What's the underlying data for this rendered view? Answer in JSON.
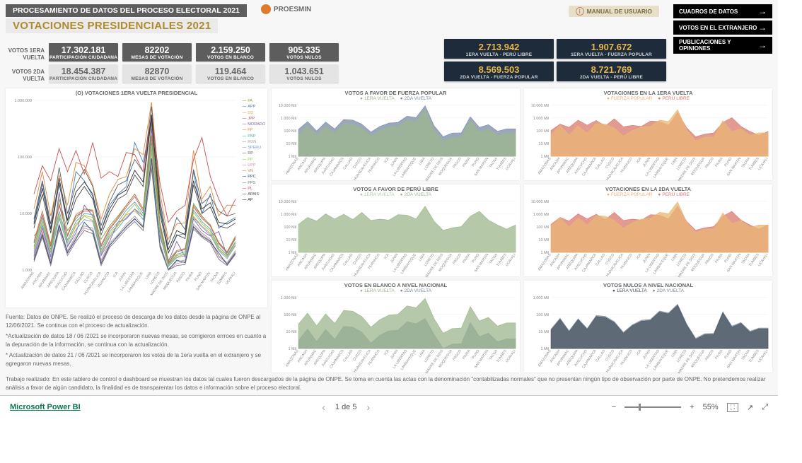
{
  "header": {
    "process": "PROCESAMIENTO DE DATOS DEL PROCESO ELECTORAL 2021",
    "title": "VOTACIONES PRESIDENCIALES 2021",
    "brand": "PROESMIN",
    "manual": "MANUAL DE USUARIO"
  },
  "nav": [
    "CUADROS DE DATOS",
    "VOTOS EN EL EXTRANJERO",
    "PUBLICACIONES Y OPINIONES"
  ],
  "rows": {
    "r1": {
      "label": "VOTOS 1ERA VUELTA",
      "cards": [
        {
          "val": "17.302.181",
          "lbl": "PARTICIPACIÓN CIUDADANA"
        },
        {
          "val": "82202",
          "lbl": "MESAS DE VOTACIÓN"
        },
        {
          "val": "2.159.250",
          "lbl": "VOTOS EN BLANCO"
        },
        {
          "val": "905.335",
          "lbl": "VOTOS NULOS"
        }
      ]
    },
    "r2": {
      "label": "VOTOS 2DA VUELTA",
      "cards": [
        {
          "val": "18.454.387",
          "lbl": "PARTICIPACIÓN CIUDADANA"
        },
        {
          "val": "82870",
          "lbl": "MESAS DE VOTACIÓN"
        },
        {
          "val": "119.464",
          "lbl": "VOTOS EN BLANCO"
        },
        {
          "val": "1.043.651",
          "lbl": "VOTOS NULOS"
        }
      ]
    }
  },
  "big": [
    {
      "val": "2.713.942",
      "lbl": "1ERA VUELTA - PERÚ LIBRE"
    },
    {
      "val": "1.907.672",
      "lbl": "1ERA VUELTA - FUERZA POPULAR"
    },
    {
      "val": "8.569.503",
      "lbl": "2DA VUELTA - FUERZA POPULAR"
    },
    {
      "val": "8.721.769",
      "lbl": "2DA VUELTA - PERÚ LIBRE"
    }
  ],
  "regions": [
    "AMAZONAS",
    "ANCASH",
    "APURIMAC",
    "AREQUIPA",
    "AYACUCHO",
    "CAJAMARCA",
    "CALLAO",
    "CUSCO",
    "HUANCAVELICA",
    "HUANUCO",
    "ICA",
    "JUNIN",
    "LA LIBERTAD",
    "LAMBAYEQUE",
    "LIMA",
    "LORETO",
    "MADRE DE DIOS",
    "MOQUEGUA",
    "PASCO",
    "PIURA",
    "PUNO",
    "SAN MARTIN",
    "TACNA",
    "TUMBES",
    "UCAYALI"
  ],
  "mainChart": {
    "title": "(O) VOTACIONES 1ERA VUELTA PRESIDENCIAL",
    "type": "line",
    "ylim": [
      1000,
      1000000
    ],
    "yscale": "log",
    "ylabels": [
      "1.000",
      "10.000",
      "100.000",
      "1.000.000"
    ],
    "series": [
      {
        "name": "FA",
        "color": "#7aa34a",
        "data": [
          4000,
          6000,
          3000,
          18000,
          5000,
          8000,
          12000,
          11000,
          3500,
          6000,
          9000,
          14000,
          22000,
          12000,
          380000,
          7000,
          1500,
          2200,
          2400,
          15000,
          9000,
          6200,
          3100,
          2100,
          4000
        ]
      },
      {
        "name": "APP",
        "color": "#4b7fb5",
        "data": [
          7000,
          34000,
          5500,
          32000,
          7500,
          55000,
          38000,
          20000,
          5000,
          14000,
          22000,
          30000,
          180000,
          80000,
          420000,
          15000,
          2000,
          4000,
          4500,
          55000,
          10000,
          22000,
          5500,
          7000,
          8500
        ]
      },
      {
        "name": "DD",
        "color": "#d9b347",
        "data": [
          2200,
          7000,
          2000,
          9000,
          3000,
          6000,
          9000,
          7500,
          2000,
          4000,
          6000,
          9500,
          11000,
          8000,
          120000,
          4500,
          1200,
          1700,
          1900,
          9000,
          6000,
          4500,
          2300,
          1700,
          2800
        ]
      },
      {
        "name": "JPP",
        "color": "#c4545f",
        "data": [
          3000,
          9500,
          2600,
          14000,
          4000,
          9000,
          11000,
          11000,
          2600,
          5200,
          8000,
          13000,
          20000,
          11000,
          220000,
          6200,
          1300,
          2100,
          2300,
          13000,
          8200,
          6000,
          2900,
          2000,
          3600
        ]
      },
      {
        "name": "MORADO",
        "color": "#8b5fa8",
        "data": [
          1800,
          5500,
          1700,
          24000,
          2600,
          4500,
          14000,
          9000,
          1800,
          3200,
          7000,
          8000,
          12000,
          9000,
          320000,
          3800,
          1400,
          3200,
          1700,
          8000,
          5000,
          4000,
          4800,
          1800,
          3000
        ]
      },
      {
        "name": "FP",
        "color": "#e18a3b",
        "data": [
          12000,
          55000,
          9000,
          48000,
          14000,
          80000,
          70000,
          32000,
          8000,
          22000,
          40000,
          45000,
          140000,
          110000,
          930000,
          24000,
          3500,
          6500,
          6800,
          130000,
          18000,
          30000,
          9000,
          14000,
          14000
        ]
      },
      {
        "name": "PNP",
        "color": "#5aa7a7",
        "data": [
          2600,
          8500,
          2300,
          11000,
          3400,
          7200,
          10000,
          9500,
          2300,
          4700,
          7000,
          11500,
          16000,
          10000,
          180000,
          5500,
          1250,
          1900,
          2100,
          11500,
          7200,
          5300,
          2600,
          1850,
          3200
        ]
      },
      {
        "name": "RUN",
        "color": "#a0a0a0",
        "data": [
          1700,
          4800,
          1500,
          6500,
          2200,
          4000,
          6000,
          5500,
          1500,
          3000,
          4200,
          6500,
          9000,
          6000,
          80000,
          3000,
          1050,
          1400,
          1500,
          6500,
          4500,
          3500,
          1800,
          1350,
          2200
        ]
      },
      {
        "name": "SPERU",
        "color": "#6e9ed6",
        "data": [
          2000,
          6200,
          1800,
          8200,
          2700,
          5200,
          7800,
          7200,
          1900,
          3800,
          5500,
          8500,
          12000,
          7800,
          140000,
          4200,
          1150,
          1650,
          1800,
          8500,
          5800,
          4200,
          2200,
          1600,
          2700
        ]
      },
      {
        "name": "RP",
        "color": "#5c5c5c",
        "data": [
          8000,
          38000,
          6500,
          65000,
          10000,
          32000,
          60000,
          30000,
          6200,
          16000,
          32000,
          38000,
          90000,
          55000,
          780000,
          17000,
          2800,
          8500,
          5200,
          60000,
          15000,
          20000,
          11000,
          9000,
          10000
        ]
      },
      {
        "name": "PP",
        "color": "#9bc55d",
        "data": [
          2400,
          7500,
          2100,
          9500,
          3100,
          6400,
          9200,
          8500,
          2100,
          4300,
          6300,
          10000,
          14500,
          9000,
          160000,
          5000,
          1200,
          1800,
          1950,
          10500,
          6600,
          4900,
          2400,
          1750,
          3000
        ]
      },
      {
        "name": "UPP",
        "color": "#d88fb0",
        "data": [
          1600,
          4500,
          1400,
          5800,
          2100,
          3700,
          5500,
          5000,
          1400,
          2800,
          3900,
          6000,
          8200,
          5500,
          70000,
          2800,
          1000,
          1300,
          1400,
          6000,
          4200,
          3300,
          1700,
          1300,
          2100
        ]
      },
      {
        "name": "VN",
        "color": "#b5874a",
        "data": [
          3200,
          11000,
          2800,
          15000,
          4200,
          9500,
          12000,
          11500,
          2800,
          5500,
          8500,
          14000,
          22000,
          12000,
          240000,
          6700,
          1350,
          2200,
          2400,
          14000,
          8800,
          6300,
          3000,
          2100,
          3800
        ]
      },
      {
        "name": "PPC",
        "color": "#264d73",
        "data": [
          1500,
          4200,
          1300,
          6200,
          2000,
          3500,
          7000,
          4800,
          1300,
          2700,
          4000,
          5800,
          8000,
          5800,
          95000,
          2700,
          950,
          1500,
          1350,
          5800,
          4000,
          3200,
          2000,
          1250,
          2000
        ]
      },
      {
        "name": "PPS",
        "color": "#7a7a7a",
        "data": [
          1400,
          3800,
          1200,
          5200,
          1800,
          3200,
          5000,
          4400,
          1200,
          2500,
          3600,
          5300,
          7200,
          5000,
          62000,
          2500,
          900,
          1200,
          1250,
          5300,
          3800,
          3000,
          1550,
          1200,
          1900
        ]
      },
      {
        "name": "PL",
        "color": "#c94f4f",
        "data": [
          22000,
          70000,
          38000,
          140000,
          55000,
          130000,
          50000,
          180000,
          42000,
          55000,
          45000,
          120000,
          110000,
          55000,
          560000,
          35000,
          7000,
          11000,
          14000,
          90000,
          220000,
          45000,
          18000,
          9000,
          18000
        ]
      },
      {
        "name": "APAIS",
        "color": "#4a4a4a",
        "data": [
          5500,
          22000,
          4500,
          35000,
          6500,
          18000,
          30000,
          18000,
          4200,
          10000,
          18000,
          22000,
          48000,
          30000,
          480000,
          10000,
          2000,
          4200,
          3600,
          32000,
          10000,
          13000,
          6000,
          5500,
          6800
        ]
      },
      {
        "name": "AP",
        "color": "#333333",
        "data": [
          6500,
          28000,
          5200,
          42000,
          7500,
          24000,
          36000,
          22000,
          5000,
          12000,
          21000,
          26000,
          58000,
          36000,
          560000,
          12000,
          2300,
          5000,
          4200,
          38000,
          12000,
          15500,
          7000,
          6500,
          8000
        ]
      }
    ]
  },
  "smallCharts": [
    {
      "title": "VOTOS A FAVOR DE FUERZA POPULAR",
      "legend": [
        "1ERA VUELTA",
        "2DA VUELTA"
      ],
      "colors": [
        "#9cb68c",
        "#7a8aa8"
      ],
      "ylabels": [
        "1 Mil",
        "10 Mil",
        "100 Mil",
        "1.000 Mil",
        "10.000 Mil"
      ],
      "s1": [
        50,
        260,
        45,
        240,
        65,
        380,
        340,
        160,
        38,
        105,
        195,
        220,
        680,
        530,
        4500,
        115,
        16,
        32,
        33,
        620,
        85,
        145,
        44,
        68,
        68
      ],
      "s2": [
        130,
        520,
        95,
        480,
        140,
        760,
        680,
        330,
        78,
        220,
        400,
        450,
        1400,
        1080,
        9100,
        240,
        34,
        66,
        68,
        1260,
        180,
        300,
        92,
        140,
        140
      ]
    },
    {
      "title": "VOTACIONES EN LA 1ERA VUELTA",
      "legend": [
        "FUERZA POPULAR",
        "PERÚ LIBRE"
      ],
      "colors": [
        "#eab676",
        "#d97a6c"
      ],
      "ylabels": [
        "1 Mil",
        "10 Mil",
        "100 Mil",
        "1.000 Mil",
        "10.000 Mil"
      ],
      "s1": [
        50,
        260,
        45,
        240,
        65,
        380,
        340,
        160,
        38,
        105,
        195,
        220,
        680,
        530,
        4500,
        115,
        16,
        32,
        33,
        620,
        85,
        145,
        44,
        68,
        68
      ],
      "s2": [
        105,
        330,
        185,
        680,
        270,
        630,
        240,
        870,
        205,
        265,
        220,
        580,
        530,
        265,
        2700,
        170,
        34,
        54,
        68,
        440,
        1070,
        220,
        88,
        44,
        88
      ]
    },
    {
      "title": "VOTOS A FAVOR DE PERÚ LIBRE",
      "legend": [
        "1ERA VUELTA",
        "2DA VUELTA"
      ],
      "colors": [
        "#b5c9a8",
        "#9cb68c"
      ],
      "ylabels": [
        "1 Mil",
        "10 Mil",
        "100 Mil",
        "1.000 Mil",
        "10.000 Mil"
      ],
      "s1": [
        105,
        330,
        185,
        680,
        270,
        630,
        240,
        870,
        205,
        265,
        220,
        580,
        530,
        265,
        2700,
        170,
        34,
        54,
        68,
        440,
        1070,
        220,
        88,
        44,
        88
      ],
      "s2": [
        160,
        550,
        290,
        1050,
        420,
        980,
        380,
        1350,
        320,
        410,
        340,
        900,
        830,
        420,
        4200,
        270,
        54,
        84,
        105,
        690,
        1650,
        340,
        140,
        68,
        140
      ]
    },
    {
      "title": "VOTACIONES EN LA 2DA VUELTA",
      "legend": [
        "FUERZA POPULAR",
        "PERÚ LIBRE"
      ],
      "colors": [
        "#eab676",
        "#d97a6c"
      ],
      "ylabels": [
        "1 Mil",
        "10 Mil",
        "100 Mil",
        "1.000 Mil",
        "10.000 Mil"
      ],
      "s1": [
        130,
        520,
        95,
        480,
        140,
        760,
        680,
        330,
        78,
        220,
        400,
        450,
        1400,
        1080,
        9100,
        240,
        34,
        66,
        68,
        1260,
        180,
        300,
        92,
        140,
        140
      ],
      "s2": [
        160,
        550,
        290,
        1050,
        420,
        980,
        380,
        1350,
        320,
        410,
        340,
        900,
        830,
        420,
        4200,
        270,
        54,
        84,
        105,
        690,
        1650,
        340,
        140,
        68,
        140
      ]
    },
    {
      "title": "VOTOS EN BLANCO A NIVEL NACIONAL",
      "legend": [
        "1ERA VUELTA",
        "2DA VUELTA"
      ],
      "colors": [
        "#9cb68c",
        "#7a8aa8"
      ],
      "ylabels": [
        "1 Mil",
        "10 Mil",
        "100 Mil",
        "1.000 Mil"
      ],
      "s1": [
        28,
        120,
        22,
        110,
        30,
        175,
        155,
        76,
        18,
        50,
        92,
        104,
        320,
        250,
        880,
        56,
        8,
        15,
        16,
        290,
        42,
        68,
        21,
        32,
        32
      ],
      "s2": [
        3,
        14,
        2.6,
        13,
        3.5,
        20,
        18,
        9,
        2.1,
        6,
        11,
        12,
        37,
        29,
        58,
        6.5,
        1,
        1.8,
        1.9,
        34,
        5,
        8,
        2.5,
        3.7,
        3.7
      ]
    },
    {
      "title": "VOTOS NULOS A NIVEL NACIONAL",
      "legend": [
        "1ERA VUELTA",
        "2DA VUELTA"
      ],
      "colors": [
        "#4a5562",
        "#7c8a99"
      ],
      "ylabels": [
        "1 Mil",
        "10 Mil",
        "100 Mil",
        "1.000 Mil"
      ],
      "s1": [
        12,
        52,
        9.5,
        49,
        13,
        76,
        67,
        33,
        7.7,
        22,
        40,
        45,
        140,
        108,
        350,
        24,
        3.4,
        6.5,
        6.7,
        125,
        18,
        30,
        9,
        14,
        14
      ],
      "s2": [
        14,
        60,
        11,
        56,
        15,
        88,
        78,
        38,
        9,
        25,
        46,
        52,
        160,
        125,
        400,
        28,
        4,
        7.5,
        7.8,
        145,
        21,
        34,
        10.5,
        16,
        16
      ]
    }
  ],
  "notes": [
    "Fuente: Datos de ONPE. Se realizó el proceso de descarga de los datos desde la página de ONPE al 12/06/2021. Se continua con el proceso de actualización.",
    "*Actualización de datos 18 / 06 /2021 se incorporaron nuevas mesas, se corrigieron errroes en cuanto a la depuración de la información, se continua con la actualización.",
    "* Actualización de datos 21 / 06 /2021 se incorporaron los votos de la 1era vuelta en el extranjero y se agregaron nuevas mesas."
  ],
  "footnote": "Trabajo realizado: En este tablero de control o dashboard se muestran los datos tal cuales fueron descargados de la página de ONPE. Se toma en cuenta las actas con la denominación \"contabilizadas normales\" que no presentan ningún tipo de observación por parte de ONPE. No pretendemos realizar análisis a favor de algún candidato, la finalidad es de transparentar los datos e información sobre el proceso electoral.",
  "footer": {
    "brand": "Microsoft Power BI",
    "page": "1 de 5",
    "zoom": "55%",
    "zoom_pos": 0.25
  }
}
